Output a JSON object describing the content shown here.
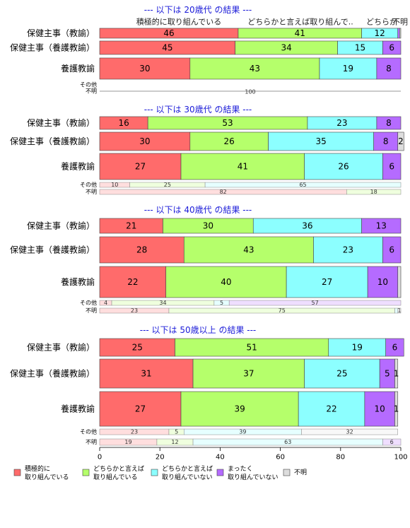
{
  "chart_data": {
    "type": "bar",
    "orientation": "horizontal",
    "stacked": true,
    "xlim": [
      0,
      100
    ],
    "xticks": [
      "0",
      "20",
      "40",
      "60",
      "80",
      "100"
    ],
    "legend": {
      "placement": "bottom",
      "entries": [
        {
          "line1": "積極的に",
          "line2": "取り組んでいる",
          "color": "#FF6B6B"
        },
        {
          "line1": "どちらかと言えば",
          "line2": "取り組んでいる",
          "color": "#B5FF6B"
        },
        {
          "line1": "どちらかと言えば",
          "line2": "取り組んでいない",
          "color": "#8CFFFF"
        },
        {
          "line1": "まったく",
          "line2": "取り組んでいない",
          "color": "#B56BFF"
        },
        {
          "line1": "不明",
          "line2": "",
          "color": "#DDDDDD"
        }
      ]
    },
    "colors": [
      "#FF6B6B",
      "#B5FF6B",
      "#8CFFFF",
      "#B56BFF",
      "#DDDDDD"
    ],
    "panels": [
      {
        "title": "--- 以下は 20歳代 の結果 ---",
        "header_labels": [
          "積極的に取り組んでいる",
          "どちらかと言えば取り組んで..",
          "どちらか",
          "不明"
        ],
        "rows": [
          {
            "label": "保健主事（教諭）",
            "values": [
              46,
              41,
              12,
              0.6,
              0.4
            ],
            "labels": [
              "46",
              "41",
              "12",
              "",
              ""
            ]
          },
          {
            "label": "保健主事（養護教諭）",
            "values": [
              45,
              34,
              15,
              6,
              0
            ],
            "labels": [
              "45",
              "34",
              "15",
              "6",
              ""
            ]
          },
          {
            "label": "養護教諭",
            "values": [
              30,
              43,
              19,
              8,
              0
            ],
            "labels": [
              "30",
              "43",
              "19",
              "8",
              ""
            ]
          }
        ],
        "small_rows": [
          {
            "label": "その他",
            "values": [],
            "labels": []
          },
          {
            "label": "不明",
            "values": [
              100
            ],
            "labels": [
              "100"
            ],
            "colors": [
              "#DDDDDD"
            ],
            "line_only": true
          }
        ]
      },
      {
        "title": "--- 以下は 30歳代 の結果 ---",
        "rows": [
          {
            "label": "保健主事（教諭）",
            "values": [
              16,
              53,
              23,
              8,
              0
            ],
            "labels": [
              "16",
              "53",
              "23",
              "8",
              ""
            ]
          },
          {
            "label": "保健主事（養護教諭）",
            "values": [
              30,
              26,
              35,
              8,
              2
            ],
            "labels": [
              "30",
              "26",
              "35",
              "8",
              "2"
            ]
          },
          {
            "label": "養護教諭",
            "values": [
              27,
              41,
              26,
              6,
              0
            ],
            "labels": [
              "27",
              "41",
              "26",
              "6",
              ""
            ]
          }
        ],
        "small_rows": [
          {
            "label": "その他",
            "values": [
              10,
              25,
              65
            ],
            "labels": [
              "10",
              "25",
              "65"
            ]
          },
          {
            "label": "不明",
            "values": [
              82,
              18
            ],
            "labels": [
              "82",
              "18"
            ]
          }
        ]
      },
      {
        "title": "--- 以下は 40歳代 の結果 ---",
        "rows": [
          {
            "label": "保健主事（教諭）",
            "values": [
              21,
              30,
              36,
              13,
              0
            ],
            "labels": [
              "21",
              "30",
              "36",
              "13",
              ""
            ]
          },
          {
            "label": "保健主事（養護教諭）",
            "values": [
              28,
              43,
              23,
              6,
              0
            ],
            "labels": [
              "28",
              "43",
              "23",
              "6",
              ""
            ]
          },
          {
            "label": "養護教諭",
            "values": [
              22,
              40,
              27,
              10,
              1
            ],
            "labels": [
              "22",
              "40",
              "27",
              "10",
              ""
            ]
          }
        ],
        "small_rows": [
          {
            "label": "その他",
            "values": [
              4,
              34,
              5,
              57
            ],
            "labels": [
              "4",
              "34",
              "5",
              "57"
            ]
          },
          {
            "label": "不明",
            "values": [
              23,
              75,
              1,
              0,
              1
            ],
            "labels": [
              "23",
              "75",
              "",
              "",
              "1"
            ]
          }
        ]
      },
      {
        "title": "--- 以下は 50歳以上 の結果 ---",
        "rows": [
          {
            "label": "保健主事（教諭）",
            "values": [
              25,
              51,
              19,
              6,
              0
            ],
            "labels": [
              "25",
              "51",
              "19",
              "6",
              ""
            ]
          },
          {
            "label": "保健主事（養護教諭）",
            "values": [
              31,
              37,
              25,
              5,
              1
            ],
            "labels": [
              "31",
              "37",
              "25",
              "5",
              "1"
            ]
          },
          {
            "label": "養護教諭",
            "values": [
              27,
              39,
              22,
              10,
              1
            ],
            "labels": [
              "27",
              "39",
              "22",
              "10",
              "1"
            ]
          }
        ],
        "small_rows": [
          {
            "label": "その他",
            "values": [
              23,
              5,
              39,
              0,
              32
            ],
            "labels": [
              "23",
              "5",
              "39",
              "",
              "32"
            ]
          },
          {
            "label": "不明",
            "values": [
              19,
              12,
              63,
              6,
              0
            ],
            "labels": [
              "19",
              "12",
              "63",
              "6",
              ""
            ]
          }
        ]
      }
    ]
  }
}
